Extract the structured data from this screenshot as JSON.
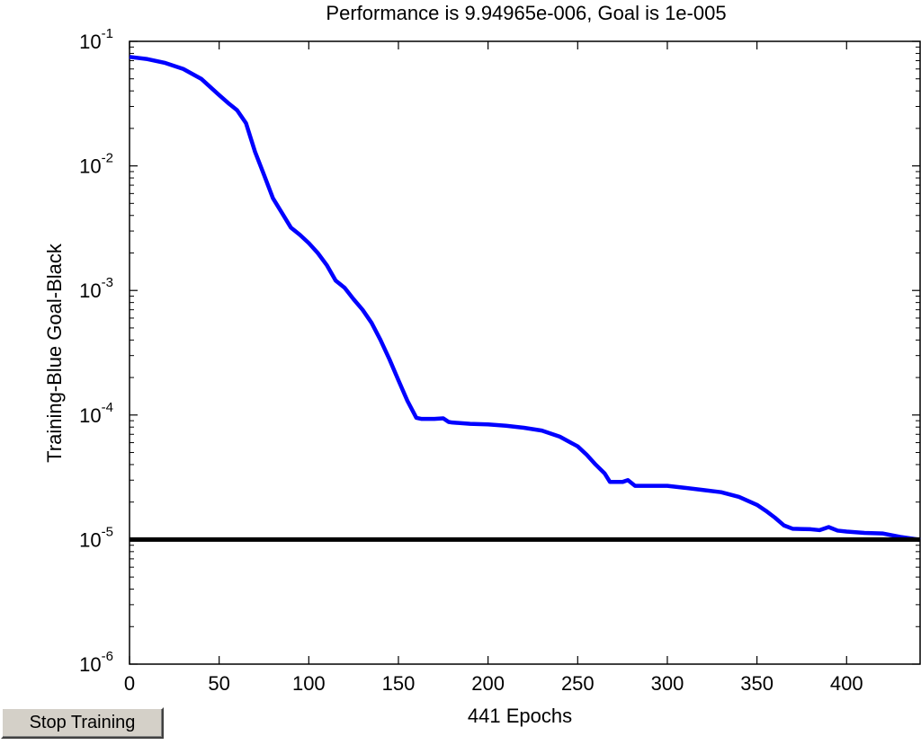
{
  "window": {
    "stop_button_label": "Stop Training"
  },
  "colors": {
    "training": "#0000ff",
    "goal": "#000000",
    "axes": "#000000",
    "background": "#ffffff"
  },
  "chart_data": {
    "type": "line",
    "title": "Performance is 9.94965e-006, Goal is 1e-005",
    "xlabel": "441 Epochs",
    "ylabel": "Training-Blue  Goal-Black",
    "yscale": "log",
    "xlim": [
      0,
      441
    ],
    "ylim": [
      1e-06,
      0.1
    ],
    "grid": false,
    "x_ticks": [
      0,
      50,
      100,
      150,
      200,
      250,
      300,
      350,
      400
    ],
    "y_ticks": [
      {
        "base": "10",
        "exp": "-6",
        "value": 1e-06
      },
      {
        "base": "10",
        "exp": "-5",
        "value": 1e-05
      },
      {
        "base": "10",
        "exp": "-4",
        "value": 0.0001
      },
      {
        "base": "10",
        "exp": "-3",
        "value": 0.001
      },
      {
        "base": "10",
        "exp": "-2",
        "value": 0.01
      },
      {
        "base": "10",
        "exp": "-1",
        "value": 0.1
      }
    ],
    "series": [
      {
        "name": "Training",
        "color": "#0000ff",
        "x": [
          0,
          10,
          20,
          30,
          40,
          50,
          55,
          60,
          65,
          70,
          75,
          80,
          85,
          90,
          95,
          100,
          105,
          110,
          115,
          120,
          125,
          130,
          135,
          140,
          145,
          150,
          155,
          160,
          163,
          166,
          170,
          175,
          178,
          180,
          190,
          200,
          210,
          220,
          230,
          240,
          250,
          255,
          260,
          265,
          268,
          270,
          275,
          278,
          282,
          290,
          300,
          310,
          320,
          330,
          340,
          350,
          355,
          360,
          365,
          370,
          380,
          385,
          390,
          395,
          400,
          410,
          420,
          430,
          441
        ],
        "y": [
          0.075,
          0.072,
          0.067,
          0.06,
          0.05,
          0.037,
          0.032,
          0.028,
          0.022,
          0.013,
          0.0085,
          0.0055,
          0.0042,
          0.0032,
          0.0028,
          0.0024,
          0.002,
          0.0016,
          0.0012,
          0.00105,
          0.00085,
          0.0007,
          0.00055,
          0.0004,
          0.00028,
          0.00019,
          0.00013,
          9.5e-05,
          9.3e-05,
          9.3e-05,
          9.3e-05,
          9.4e-05,
          8.8e-05,
          8.7e-05,
          8.5e-05,
          8.4e-05,
          8.2e-05,
          7.9e-05,
          7.5e-05,
          6.7e-05,
          5.6e-05,
          4.8e-05,
          4e-05,
          3.4e-05,
          2.9e-05,
          2.9e-05,
          2.9e-05,
          3e-05,
          2.7e-05,
          2.7e-05,
          2.7e-05,
          2.6e-05,
          2.5e-05,
          2.4e-05,
          2.2e-05,
          1.9e-05,
          1.7e-05,
          1.5e-05,
          1.3e-05,
          1.22e-05,
          1.21e-05,
          1.19e-05,
          1.26e-05,
          1.18e-05,
          1.16e-05,
          1.13e-05,
          1.12e-05,
          1.05e-05,
          9.95e-06
        ]
      },
      {
        "name": "Goal",
        "color": "#000000",
        "x": [
          0,
          441
        ],
        "y": [
          1e-05,
          1e-05
        ]
      }
    ]
  }
}
